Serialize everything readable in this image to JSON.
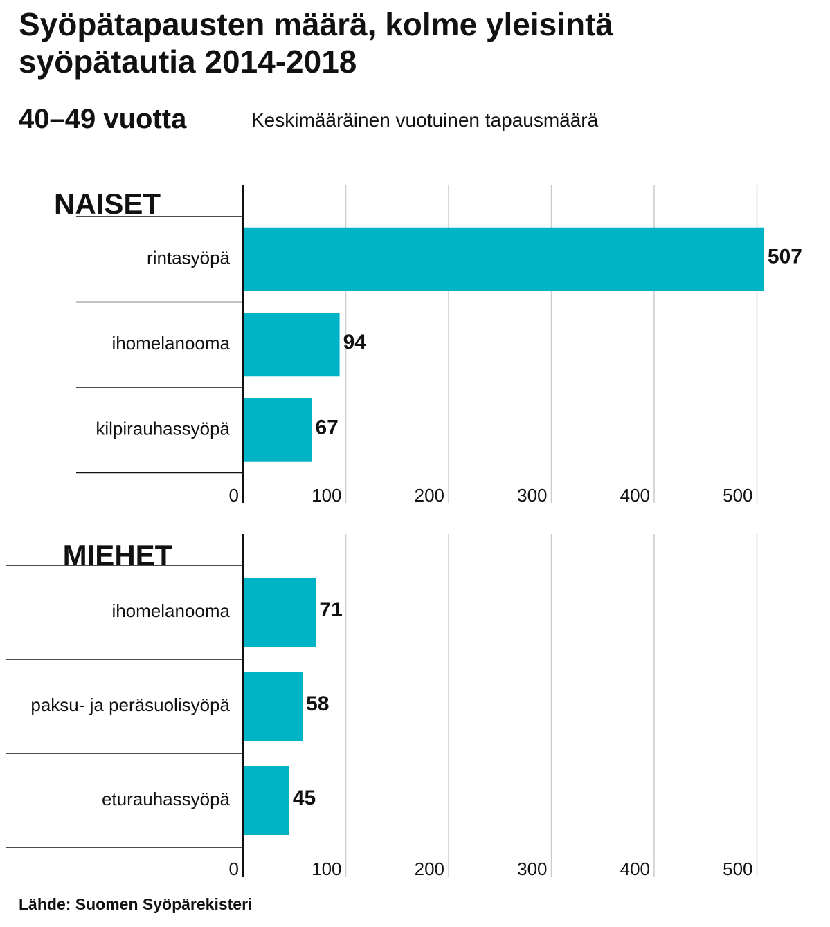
{
  "header": {
    "title": "Syöpätapausten määrä, kolme yleisintä syöpätautia 2014-2018",
    "age_group": "40–49 vuotta",
    "description": "Keskimääräinen vuotuinen tapausmäärä"
  },
  "footer": {
    "source": "Lähde: Suomen Syöpärekisteri"
  },
  "colors": {
    "bar": "#00b4c8",
    "grid": "#cccccc",
    "axis": "#111111"
  },
  "chart_data": [
    {
      "type": "bar",
      "orientation": "horizontal",
      "title": "NAISET",
      "categories": [
        "rintasyöpä",
        "ihomelanooma",
        "kilpirauhassyöpä"
      ],
      "values": [
        507,
        94,
        67
      ],
      "xlim": [
        0,
        500
      ],
      "xticks": [
        0,
        100,
        200,
        300,
        400,
        500
      ],
      "grid": true
    },
    {
      "type": "bar",
      "orientation": "horizontal",
      "title": "MIEHET",
      "categories": [
        "ihomelanooma",
        "paksu- ja peräsuolisyöpä",
        "eturauhassyöpä"
      ],
      "values": [
        71,
        58,
        45
      ],
      "xlim": [
        0,
        500
      ],
      "xticks": [
        0,
        100,
        200,
        300,
        400,
        500
      ],
      "grid": true
    }
  ]
}
